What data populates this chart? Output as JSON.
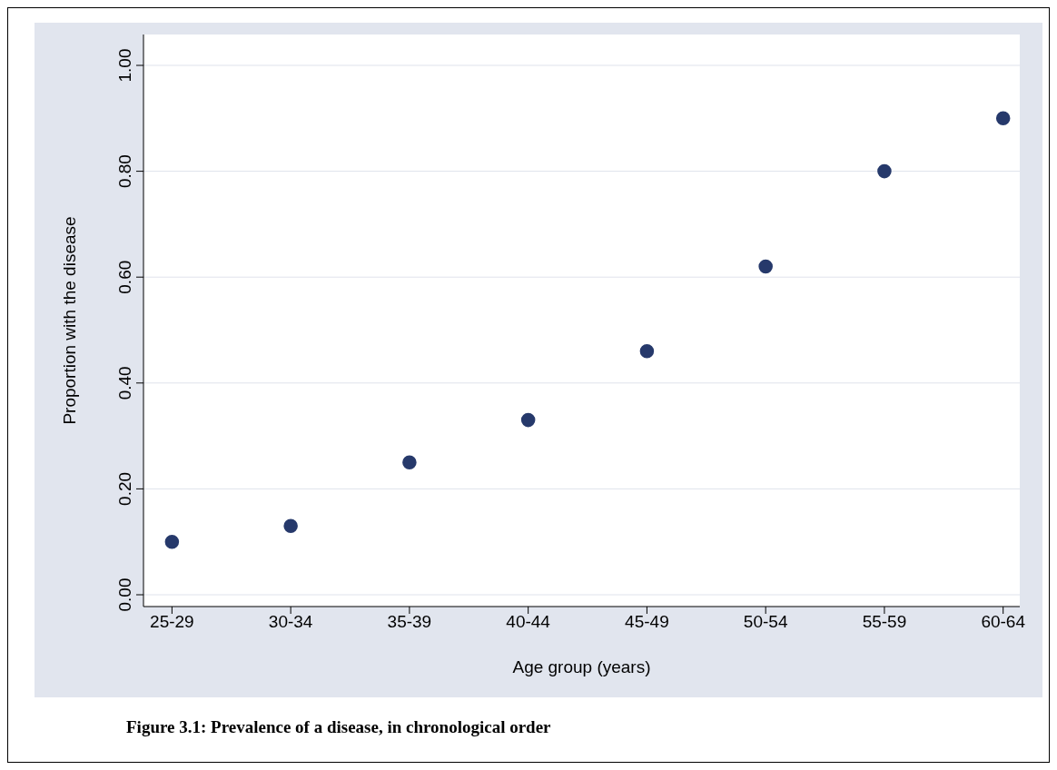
{
  "chart_data": {
    "type": "scatter",
    "title": "Figure 3.1: Prevalence of a disease, in chronological order",
    "xlabel": "Age group (years)",
    "ylabel": "Proportion with the disease",
    "categories": [
      "25-29",
      "30-34",
      "35-39",
      "40-44",
      "45-49",
      "50-54",
      "55-59",
      "60-64"
    ],
    "series": [
      {
        "color": "#26396b",
        "values": [
          0.1,
          0.13,
          0.25,
          0.33,
          0.46,
          0.62,
          0.8,
          0.9
        ]
      }
    ],
    "ylim": [
      0,
      1
    ],
    "yticks": [
      {
        "value": 0,
        "label": "0.00"
      },
      {
        "value": 0.2,
        "label": "0.20"
      },
      {
        "value": 0.4,
        "label": "0.40"
      },
      {
        "value": 0.6,
        "label": "0.60"
      },
      {
        "value": 0.8,
        "label": "0.80"
      },
      {
        "value": 1,
        "label": "1.00"
      }
    ],
    "grid": "y",
    "marker": "circle"
  }
}
